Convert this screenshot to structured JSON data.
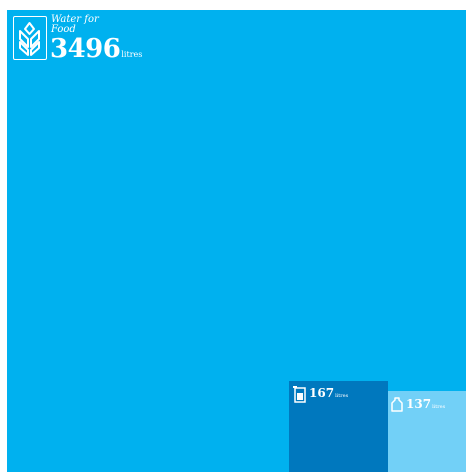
{
  "colors": {
    "food": "#00b1ef",
    "domestic": "#0078be",
    "drinking": "#72d0f7"
  },
  "food": {
    "caption_line1": "Water for",
    "caption_line2": "Food",
    "amount": "3496",
    "unit": "litres",
    "icon": "wheat-icon"
  },
  "domestic": {
    "amount": "167",
    "unit": "litres",
    "icon": "glass-icon"
  },
  "drinking": {
    "amount": "137",
    "unit": "litres",
    "icon": "bottle-icon"
  }
}
